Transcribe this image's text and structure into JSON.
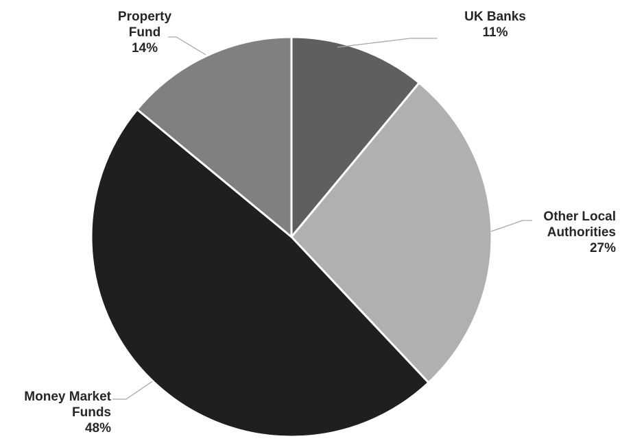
{
  "chart_data": {
    "type": "pie",
    "title": "",
    "start_angle_deg": 0,
    "direction": "clockwise",
    "slices": [
      {
        "label_lines": [
          "UK Banks"
        ],
        "pct_label": "11%",
        "value": 11,
        "color": "#5f5f5f"
      },
      {
        "label_lines": [
          "Other Local",
          "Authorities"
        ],
        "pct_label": "27%",
        "value": 27,
        "color": "#b0b0b0"
      },
      {
        "label_lines": [
          "Money Market",
          "Funds"
        ],
        "pct_label": "48%",
        "value": 48,
        "color": "#1f1f1f"
      },
      {
        "label_lines": [
          "Property",
          "Fund"
        ],
        "pct_label": "14%",
        "value": 14,
        "color": "#808080"
      }
    ],
    "slice_border_color": "#ffffff",
    "label_color": "#262626",
    "leader_line_color": "#a6a6a6",
    "legend": "none"
  }
}
